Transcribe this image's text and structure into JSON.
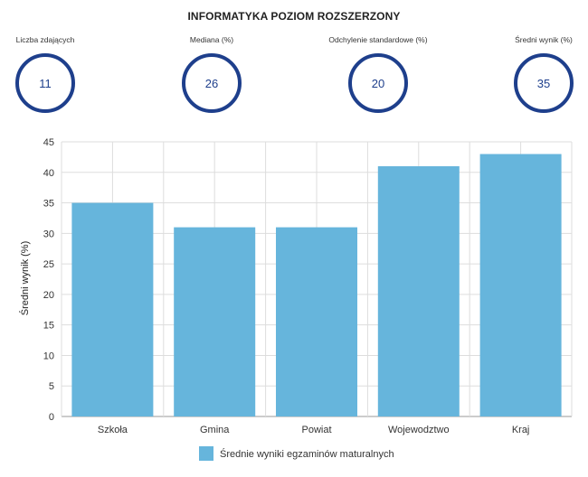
{
  "title": "INFORMATYKA POZIOM ROZSZERZONY",
  "stats": [
    {
      "label": "Liczba zdających",
      "value": "11"
    },
    {
      "label": "Mediana (%)",
      "value": "26"
    },
    {
      "label": "Odchylenie standardowe (%)",
      "value": "20"
    },
    {
      "label": "Średni wynik (%)",
      "value": "35"
    }
  ],
  "colors": {
    "bar": "#66b5dc",
    "circle": "#1e3f8c",
    "grid": "#dddddd"
  },
  "chart_data": {
    "type": "bar",
    "categories": [
      "Szkoła",
      "Gmina",
      "Powiat",
      "Wojewodztwo",
      "Kraj"
    ],
    "series": [
      {
        "name": "Średnie wyniki egzaminów maturalnych",
        "values": [
          35,
          31,
          31,
          41,
          43
        ]
      }
    ],
    "ylabel": "Średni wynik (%)",
    "xlabel": "",
    "ylim": [
      0,
      45
    ],
    "yticks": [
      0,
      5,
      10,
      15,
      20,
      25,
      30,
      35,
      40,
      45
    ],
    "grid": true,
    "legend": "bottom-center"
  }
}
